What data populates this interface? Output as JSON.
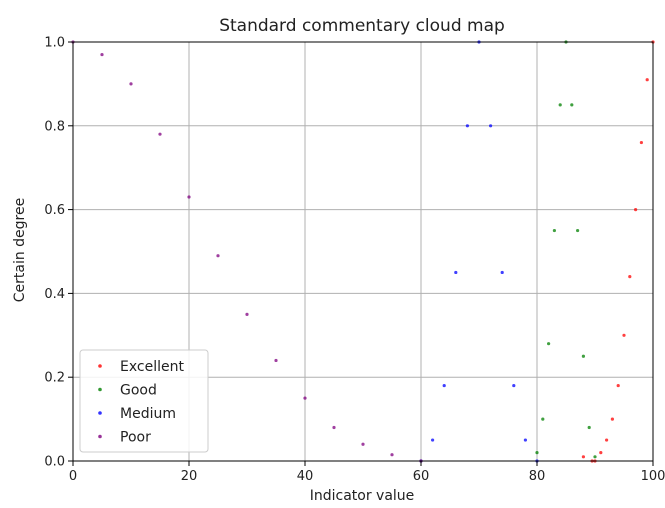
{
  "chart_data": {
    "type": "scatter",
    "title": "Standard commentary cloud map",
    "xlabel": "Indicator value",
    "ylabel": "Certain degree",
    "xlim": [
      0,
      100
    ],
    "ylim": [
      0,
      1
    ],
    "x_ticks": [
      0,
      20,
      40,
      60,
      80,
      100
    ],
    "y_ticks": [
      0.0,
      0.2,
      0.4,
      0.6,
      0.8,
      1.0
    ],
    "x_tick_labels": [
      "0",
      "20",
      "40",
      "60",
      "80",
      "100"
    ],
    "y_tick_labels": [
      "0.0",
      "0.2",
      "0.4",
      "0.6",
      "0.8",
      "1.0"
    ],
    "grid": true,
    "legend_position": "lower-left",
    "series": [
      {
        "name": "Excellent",
        "color": "#ff0000",
        "points": [
          [
            88,
            0.01
          ],
          [
            89.5,
            0.0
          ],
          [
            90,
            0.0
          ],
          [
            91,
            0.02
          ],
          [
            92,
            0.05
          ],
          [
            93,
            0.1
          ],
          [
            94,
            0.18
          ],
          [
            95,
            0.3
          ],
          [
            96,
            0.44
          ],
          [
            97,
            0.6
          ],
          [
            98,
            0.76
          ],
          [
            99,
            0.91
          ],
          [
            100,
            1.0
          ]
        ]
      },
      {
        "name": "Good",
        "color": "#008000",
        "points": [
          [
            80,
            0.02
          ],
          [
            81,
            0.1
          ],
          [
            82,
            0.28
          ],
          [
            83,
            0.55
          ],
          [
            84,
            0.85
          ],
          [
            85,
            1.0
          ],
          [
            86,
            0.85
          ],
          [
            87,
            0.55
          ],
          [
            88,
            0.25
          ],
          [
            89,
            0.08
          ],
          [
            90,
            0.01
          ]
        ]
      },
      {
        "name": "Medium",
        "color": "#0000ff",
        "points": [
          [
            60,
            0.0
          ],
          [
            62,
            0.05
          ],
          [
            64,
            0.18
          ],
          [
            66,
            0.45
          ],
          [
            68,
            0.8
          ],
          [
            70,
            1.0
          ],
          [
            72,
            0.8
          ],
          [
            74,
            0.45
          ],
          [
            76,
            0.18
          ],
          [
            78,
            0.05
          ],
          [
            80,
            0.0
          ]
        ]
      },
      {
        "name": "Poor",
        "color": "#800080",
        "points": [
          [
            0,
            1.0
          ],
          [
            5,
            0.97
          ],
          [
            10,
            0.9
          ],
          [
            15,
            0.78
          ],
          [
            20,
            0.63
          ],
          [
            25,
            0.49
          ],
          [
            30,
            0.35
          ],
          [
            35,
            0.24
          ],
          [
            40,
            0.15
          ],
          [
            45,
            0.08
          ],
          [
            50,
            0.04
          ],
          [
            55,
            0.015
          ],
          [
            60,
            0.0
          ]
        ]
      }
    ]
  }
}
